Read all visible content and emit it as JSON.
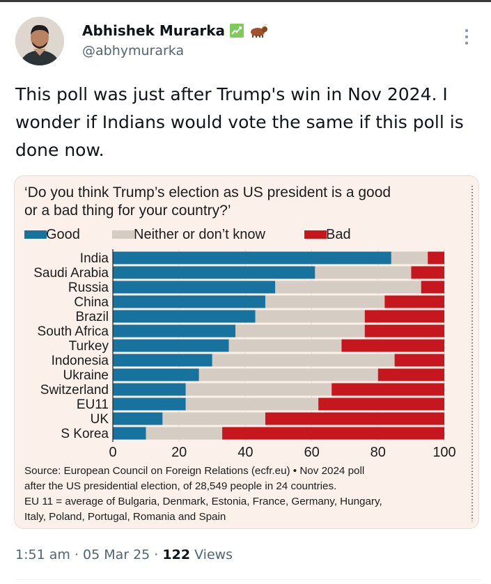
{
  "tweet": {
    "author_name": "Abhishek Murarka",
    "handle": "@abhymurarka",
    "badges": [
      "chart-increasing-emoji-icon",
      "ox-emoji-icon"
    ],
    "text": "This poll was just after Trump's win in  Nov 2024. I wonder if Indians would vote the same if this poll is done now.",
    "timestamp": "1:51 am · 05 Mar 25 · ",
    "views_count": "122",
    "views_label": " Views"
  },
  "chart_data": {
    "type": "bar",
    "stacked": true,
    "orientation": "horizontal",
    "title": "‘Do you think Trump’s election as US president is a good or a bad thing for your country?’",
    "title_lines": [
      "‘Do you think Trump’s election as US president is a good",
      "or a bad thing for your country?’"
    ],
    "categories": [
      "India",
      "Saudi Arabia",
      "Russia",
      "China",
      "Brazil",
      "South Africa",
      "Turkey",
      "Indonesia",
      "Ukraine",
      "Switzerland",
      "EU11",
      "UK",
      "S Korea"
    ],
    "series": [
      {
        "name": "Good",
        "color": "#17739e",
        "values": [
          84,
          61,
          49,
          46,
          43,
          37,
          35,
          30,
          26,
          22,
          22,
          15,
          10
        ]
      },
      {
        "name": "Neither or don’t know",
        "color": "#d5ccc3",
        "values": [
          11,
          29,
          44,
          36,
          33,
          39,
          34,
          55,
          54,
          44,
          40,
          31,
          23
        ]
      },
      {
        "name": "Bad",
        "color": "#c6161e",
        "values": [
          5,
          10,
          7,
          18,
          24,
          24,
          31,
          15,
          20,
          34,
          38,
          54,
          67
        ]
      }
    ],
    "xlim": [
      0,
      100
    ],
    "xticks": [
      0,
      20,
      40,
      60,
      80,
      100
    ],
    "legend_position": "top-left",
    "source_lines": [
      "Source: European Council on Foreign Relations (ecfr.eu) • Nov 2024 poll",
      "after the US presidential election, of 28,549 people in 24 countries.",
      "EU 11 = average of Bulgaria, Denmark, Estonia, France, Germany, Hungary,",
      "Italy, Poland, Portugal, Romania and Spain"
    ]
  },
  "colors": {
    "good": "#17739e",
    "neither": "#d5ccc3",
    "bad": "#c6161e",
    "card_bg": "#fcf1ea",
    "secondary_text": "#536471"
  }
}
